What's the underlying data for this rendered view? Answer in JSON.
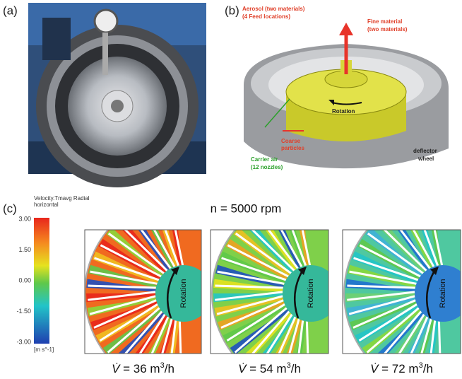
{
  "panel_a": {
    "label": "(a)"
  },
  "panel_b": {
    "label": "(b)",
    "annotations": {
      "aerosol": "Aerosol (two materials)",
      "feed": "(4 Feed locations)",
      "fine": "Fine material",
      "fine_sub": "(two materials)",
      "rotation": "Rotation",
      "coarse": "Coarse",
      "coarse_sub": "particles",
      "carrier": "Carrier air",
      "carrier_sub": "(12 nozzles)",
      "deflector": "deflector",
      "deflector_sub": "wheel"
    }
  },
  "panel_c": {
    "label": "(c)",
    "title": "n = 5000 rpm",
    "colorbar": {
      "title": "Velocity.Tmavg Radial",
      "title_sub": "horizontal",
      "ticks": [
        "3.00",
        "1.50",
        "0.00",
        "-1.50",
        "-3.00"
      ],
      "unit": "[m s^-1]"
    },
    "plots": [
      {
        "rotation": "Rotation",
        "symbol": "V̇",
        "caption": " = 36 m",
        "sup": "3",
        "suffix": "/h"
      },
      {
        "rotation": "Rotation",
        "symbol": "V̇",
        "caption": " = 54 m",
        "sup": "3",
        "suffix": "/h"
      },
      {
        "rotation": "Rotation",
        "symbol": "V̇",
        "caption": " = 72 m",
        "sup": "3",
        "suffix": "/h"
      }
    ]
  }
}
